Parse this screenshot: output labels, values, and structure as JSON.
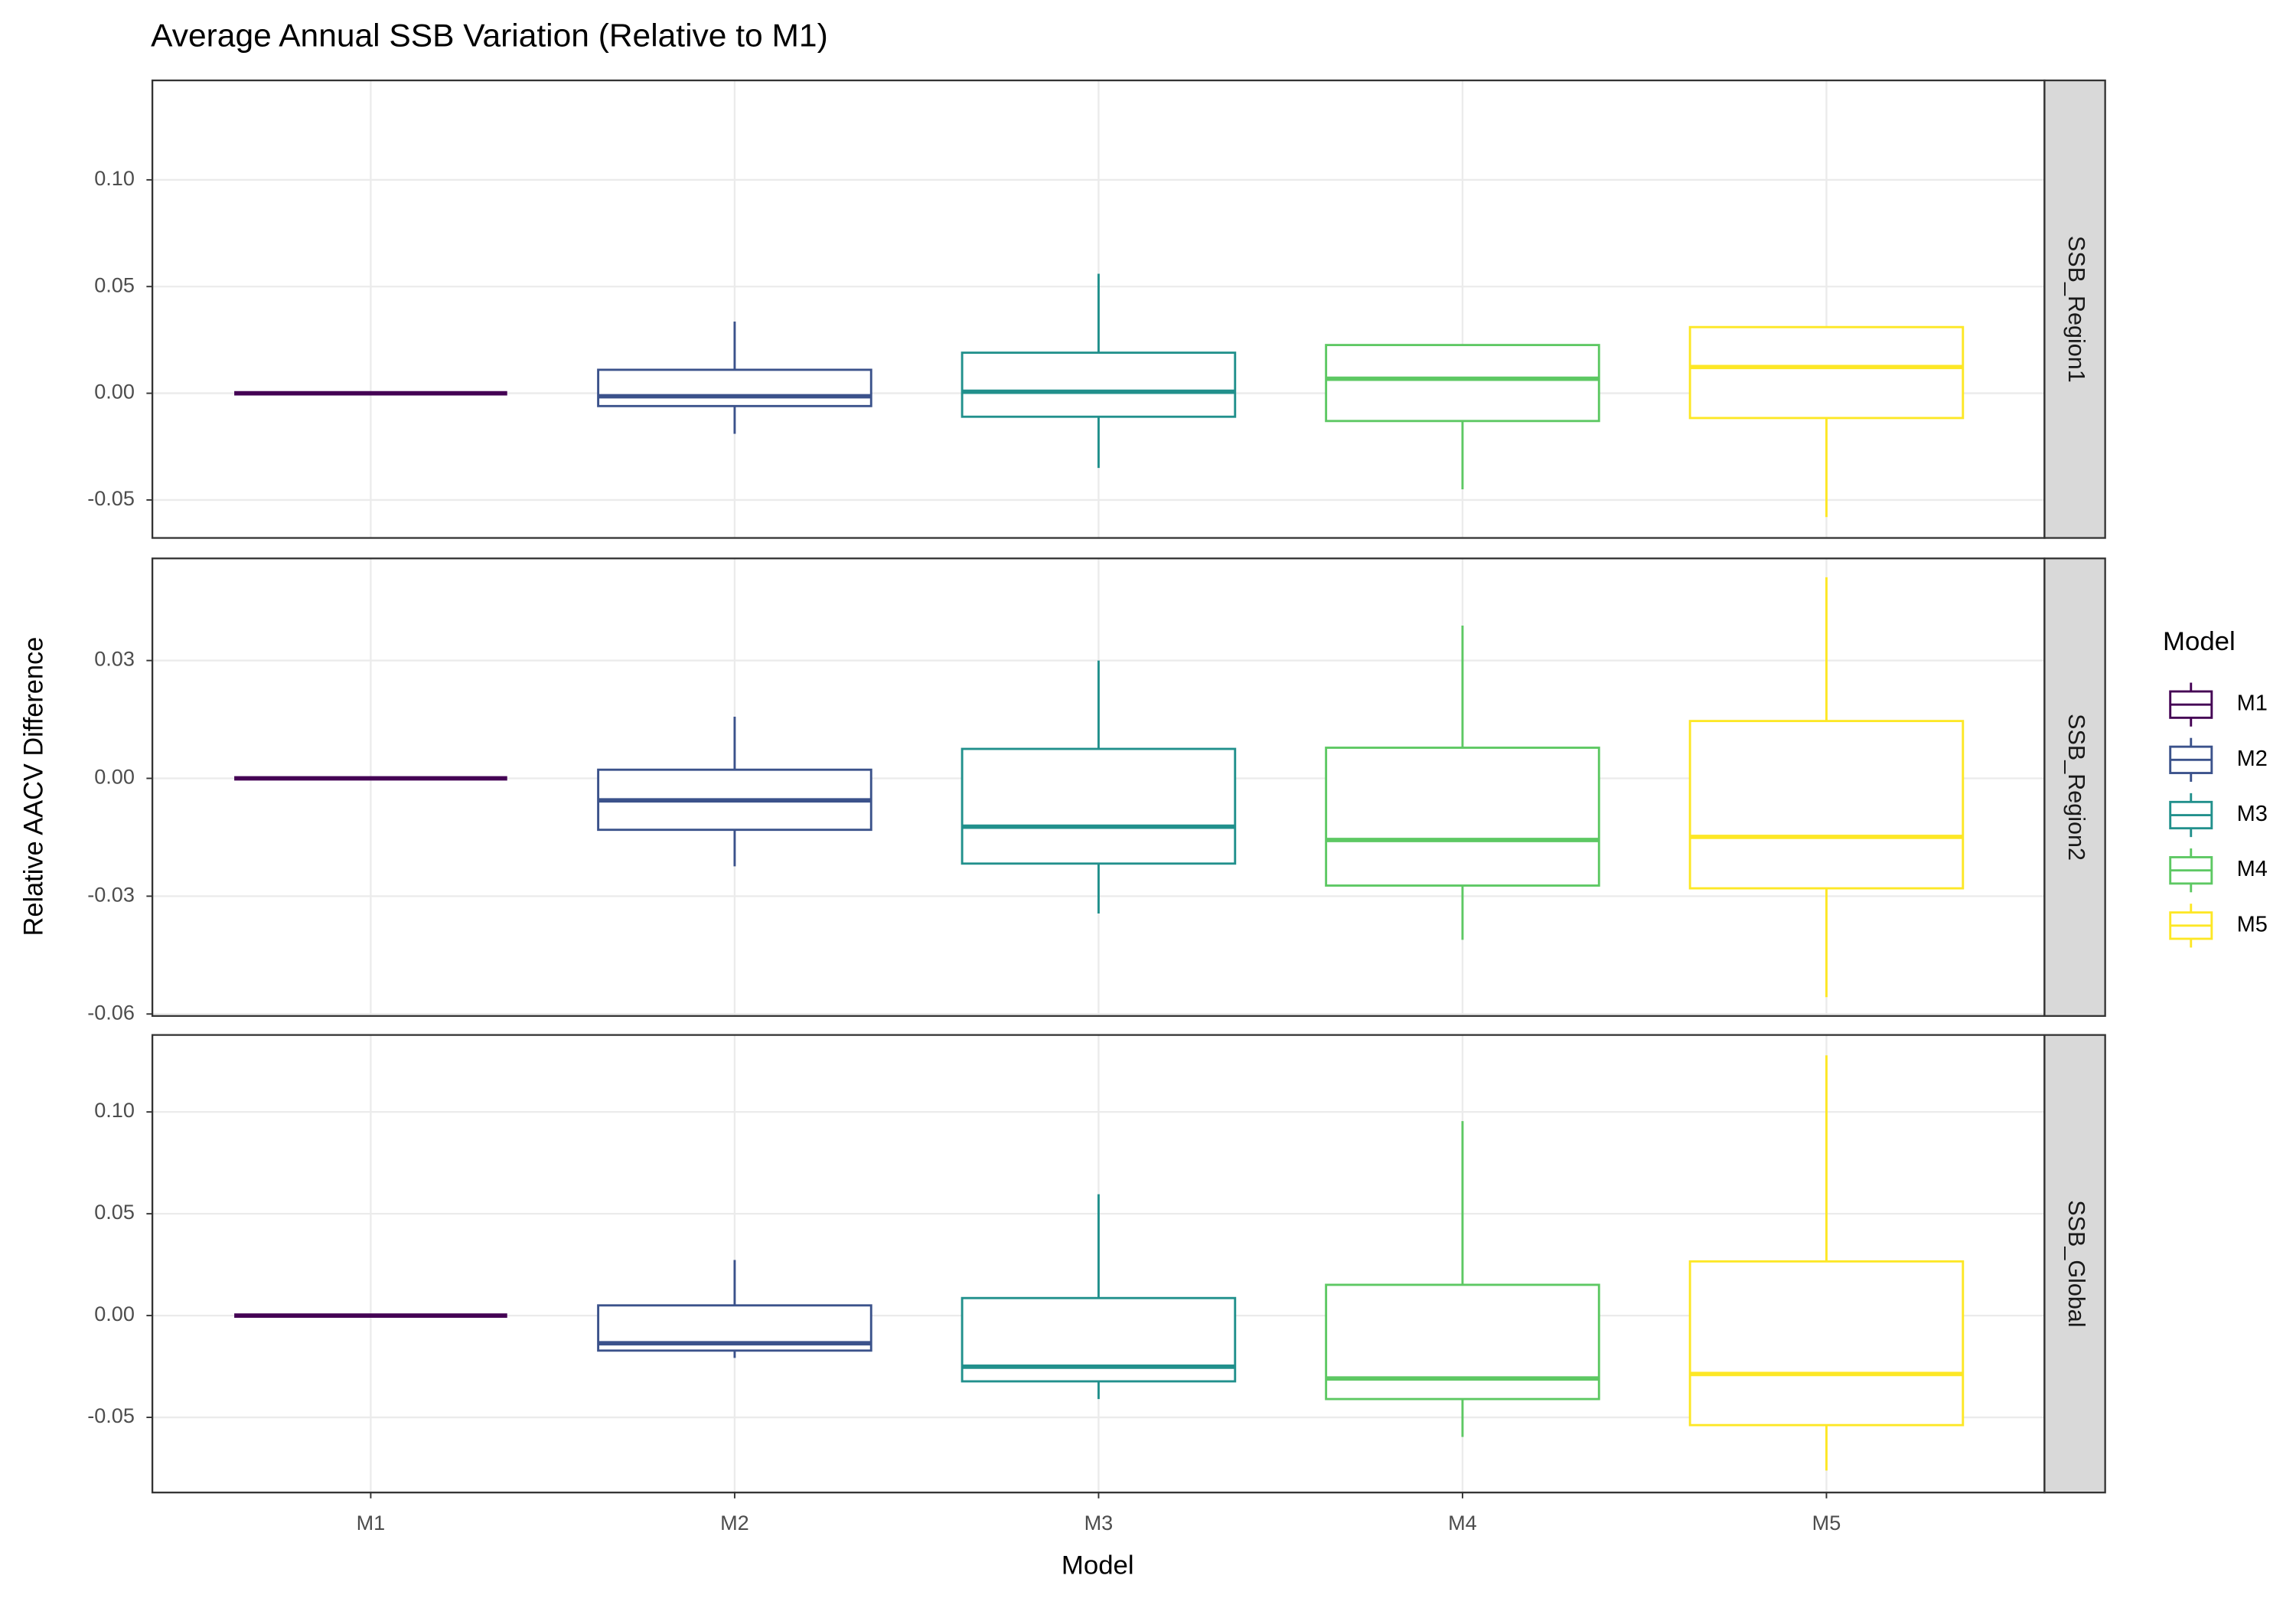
{
  "chart_data": {
    "type": "box",
    "title": "Average Annual SSB Variation (Relative to M1)",
    "x_label": "Model",
    "y_label": "Relative AACV Difference",
    "legend_title": "Model",
    "categories": [
      "M1",
      "M2",
      "M3",
      "M4",
      "M5"
    ],
    "colors": [
      "#440154",
      "#3b528b",
      "#21908c",
      "#5dc863",
      "#fde725"
    ],
    "grid": true,
    "panels": [
      {
        "name": "SSB_Region1",
        "ylim": [
          -0.0678,
          0.1466
        ],
        "yticks": [
          {
            "value": -0.05,
            "label": "-0.05"
          },
          {
            "value": 0,
            "label": "0.00"
          },
          {
            "value": 0.05,
            "label": "0.05"
          },
          {
            "value": 0.1,
            "label": "0.10"
          }
        ],
        "min": [
          0,
          -0.019,
          -0.035,
          -0.045,
          -0.058
        ],
        "q1": [
          0,
          -0.006,
          -0.011,
          -0.013,
          -0.0116
        ],
        "median": [
          0,
          -0.0014,
          0.0007,
          0.0068,
          0.0123
        ],
        "q3": [
          0,
          0.011,
          0.019,
          0.0226,
          0.031
        ],
        "max": [
          0,
          0.0336,
          0.056,
          0.0226,
          0.031
        ]
      },
      {
        "name": "SSB_Region2",
        "ylim": [
          -0.0605,
          0.056
        ],
        "yticks": [
          {
            "value": -0.06,
            "label": "-0.06"
          },
          {
            "value": -0.03,
            "label": "-0.03"
          },
          {
            "value": 0,
            "label": "0.00"
          },
          {
            "value": 0.03,
            "label": "0.03"
          }
        ],
        "min": [
          0,
          -0.0224,
          -0.0344,
          -0.0411,
          -0.0557
        ],
        "q1": [
          0,
          -0.0131,
          -0.0217,
          -0.0273,
          -0.028
        ],
        "median": [
          0,
          -0.0056,
          -0.0123,
          -0.0157,
          -0.0149
        ],
        "q3": [
          0,
          0.0022,
          0.0075,
          0.0078,
          0.0146
        ],
        "max": [
          0,
          0.0157,
          0.03,
          0.0389,
          0.0512
        ]
      },
      {
        "name": "SSB_Global",
        "ylim": [
          -0.0869,
          0.1378
        ],
        "yticks": [
          {
            "value": -0.05,
            "label": "-0.05"
          },
          {
            "value": 0,
            "label": "0.00"
          },
          {
            "value": 0.05,
            "label": "0.05"
          },
          {
            "value": 0.1,
            "label": "0.10"
          }
        ],
        "min": [
          0,
          -0.0208,
          -0.041,
          -0.0596,
          -0.0761
        ],
        "q1": [
          0,
          -0.0172,
          -0.0323,
          -0.041,
          -0.0538
        ],
        "median": [
          0,
          -0.0136,
          -0.0251,
          -0.0309,
          -0.0287
        ],
        "q3": [
          0,
          0.005,
          0.0086,
          0.0151,
          0.0266
        ],
        "max": [
          0,
          0.0273,
          0.0596,
          0.0955,
          0.1278
        ]
      }
    ]
  }
}
